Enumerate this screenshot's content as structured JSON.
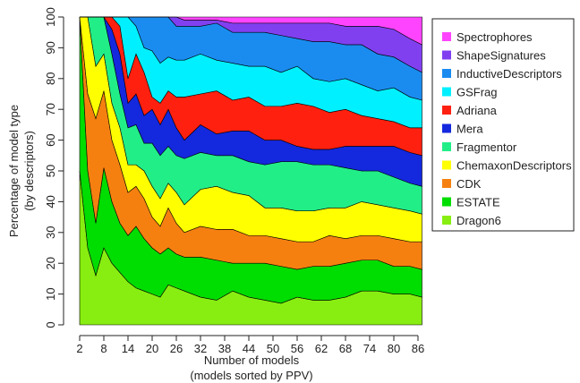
{
  "chart_data": {
    "type": "stacked_area",
    "xlabel": [
      "Number of models",
      "(models sorted by PPV)"
    ],
    "ylabel": [
      "Percentage of model type",
      "(by descriptors)"
    ],
    "x": [
      2,
      4,
      6,
      8,
      10,
      12,
      14,
      16,
      18,
      20,
      22,
      24,
      26,
      28,
      32,
      36,
      40,
      44,
      48,
      52,
      56,
      60,
      64,
      68,
      72,
      76,
      80,
      84,
      87
    ],
    "xlim": [
      2,
      87
    ],
    "xticks": [
      2,
      8,
      14,
      20,
      26,
      32,
      38,
      44,
      50,
      56,
      62,
      68,
      74,
      80,
      86
    ],
    "ylim": [
      0,
      100
    ],
    "yticks": [
      0,
      10,
      20,
      30,
      40,
      50,
      60,
      70,
      80,
      90,
      100
    ],
    "legend": "right",
    "series": [
      {
        "name": "Dragon6",
        "color": "#88ee11",
        "values": [
          50,
          25,
          16,
          25,
          20,
          17,
          14,
          12,
          11,
          10,
          9,
          13,
          12,
          11,
          9,
          8,
          11,
          9,
          8,
          7,
          9,
          8,
          8,
          9,
          11,
          11,
          10,
          10,
          9
        ]
      },
      {
        "name": "ESTATE",
        "color": "#00dd00",
        "values": [
          50,
          25,
          17,
          26,
          20,
          16,
          15,
          20,
          17,
          15,
          14,
          12,
          11,
          11,
          13,
          13,
          9,
          11,
          12,
          12,
          9,
          11,
          11,
          11,
          10,
          10,
          9,
          9,
          9
        ]
      },
      {
        "name": "CDK",
        "color": "#f58010",
        "values": [
          0,
          25,
          34,
          25,
          20,
          19,
          14,
          13,
          13,
          10,
          9,
          13,
          10,
          8,
          10,
          10,
          11,
          9,
          9,
          9,
          9,
          8,
          10,
          8,
          8,
          8,
          9,
          8,
          9
        ]
      },
      {
        "name": "ChemaxonDescriptors",
        "color": "#ffff00",
        "values": [
          0,
          25,
          17,
          12,
          12,
          12,
          9,
          7,
          9,
          10,
          9,
          8,
          10,
          9,
          12,
          14,
          12,
          13,
          9,
          10,
          10,
          10,
          9,
          10,
          11,
          10,
          10,
          10,
          9
        ]
      },
      {
        "name": "Fragmentor",
        "color": "#22ee88",
        "values": [
          0,
          0,
          16,
          12,
          16,
          11,
          12,
          13,
          9,
          14,
          14,
          12,
          12,
          15,
          12,
          10,
          12,
          11,
          14,
          15,
          16,
          15,
          14,
          13,
          10,
          11,
          10,
          9,
          9
        ]
      },
      {
        "name": "Mera",
        "color": "#1428dd",
        "values": [
          0,
          0,
          0,
          0,
          8,
          13,
          8,
          10,
          9,
          11,
          10,
          12,
          9,
          6,
          9,
          7,
          8,
          10,
          8,
          7,
          5,
          5,
          5,
          7,
          8,
          8,
          10,
          10,
          10
        ]
      },
      {
        "name": "Adriana",
        "color": "#ff2010",
        "values": [
          0,
          0,
          0,
          0,
          4,
          9,
          8,
          13,
          14,
          4,
          7,
          6,
          10,
          14,
          10,
          14,
          10,
          11,
          11,
          11,
          14,
          14,
          12,
          12,
          10,
          9,
          8,
          8,
          9
        ]
      },
      {
        "name": "GSFrag",
        "color": "#00f0ff",
        "values": [
          0,
          0,
          0,
          0,
          0,
          3,
          20,
          9,
          8,
          15,
          13,
          11,
          12,
          12,
          13,
          10,
          12,
          10,
          13,
          11,
          12,
          9,
          10,
          10,
          10,
          9,
          11,
          10,
          9
        ]
      },
      {
        "name": "InductiveDescriptors",
        "color": "#1a8cf0",
        "values": [
          0,
          0,
          0,
          0,
          0,
          0,
          0,
          3,
          10,
          11,
          15,
          13,
          11,
          11,
          9,
          12,
          10,
          11,
          11,
          12,
          9,
          12,
          13,
          11,
          13,
          12,
          10,
          10,
          9
        ]
      },
      {
        "name": "ShapeSignatures",
        "color": "#8040f0",
        "values": [
          0,
          0,
          0,
          0,
          0,
          0,
          0,
          0,
          0,
          0,
          0,
          0,
          3,
          2,
          2,
          1,
          3,
          3,
          3,
          4,
          5,
          6,
          6,
          6,
          6,
          9,
          9,
          9,
          9
        ]
      },
      {
        "name": "Spectrophores",
        "color": "#ff44ff",
        "values": [
          0,
          0,
          0,
          0,
          0,
          0,
          0,
          0,
          0,
          0,
          0,
          0,
          0,
          1,
          1,
          1,
          2,
          2,
          2,
          2,
          2,
          2,
          2,
          3,
          3,
          3,
          4,
          7,
          9
        ]
      }
    ]
  }
}
